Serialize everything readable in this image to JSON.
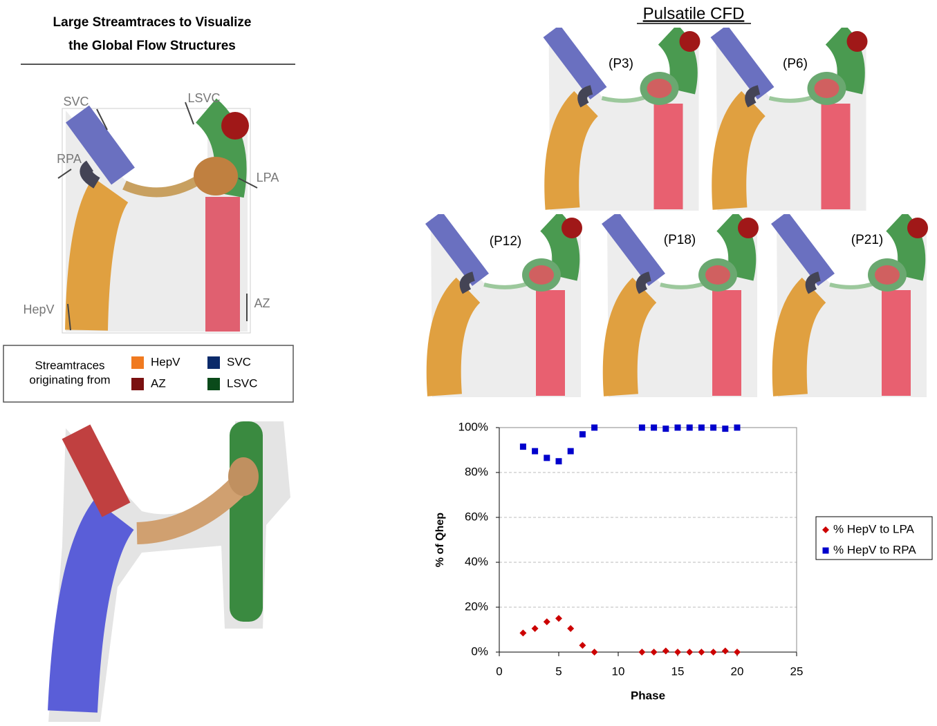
{
  "left_panel": {
    "title_lines": [
      "Large Streamtraces to Visualize",
      "the Global Flow Structures"
    ],
    "vessel_labels": {
      "svc": "SVC",
      "lsvc": "LSVC",
      "rpa": "RPA",
      "lpa": "LPA",
      "hepv": "HepV",
      "az": "AZ"
    },
    "legend": {
      "heading_lines": [
        "Streamtraces",
        "originating from"
      ],
      "items": [
        {
          "label": "HepV",
          "color": "#f07a20"
        },
        {
          "label": "SVC",
          "color": "#0a2a6a"
        },
        {
          "label": "AZ",
          "color": "#7a1010"
        },
        {
          "label": "LSVC",
          "color": "#0a4a1a"
        }
      ]
    }
  },
  "right_panel": {
    "title": "Pulsatile CFD",
    "phase_labels": [
      "(P3)",
      "(P6)",
      "(P12)",
      "(P18)",
      "(P21)"
    ]
  },
  "chart_data": {
    "type": "scatter",
    "x_label": "Phase",
    "y_label": "% of Qhep",
    "x": [
      2,
      3,
      4,
      5,
      6,
      7,
      8,
      12,
      13,
      14,
      15,
      16,
      17,
      18,
      19,
      20
    ],
    "series": [
      {
        "name": "% HepV to LPA",
        "color": "#cc0000",
        "marker": "diamond",
        "values": [
          8.5,
          10.5,
          13.5,
          15,
          10.5,
          3,
          0,
          0,
          0,
          0.5,
          0,
          0,
          0,
          0,
          0.5,
          0
        ]
      },
      {
        "name": "% HepV to RPA",
        "color": "#0000cc",
        "marker": "square",
        "values": [
          91.5,
          89.5,
          86.5,
          85,
          89.5,
          97,
          100,
          100,
          100,
          99.5,
          100,
          100,
          100,
          100,
          99.5,
          100
        ]
      }
    ],
    "xlim": [
      0,
      25
    ],
    "ylim": [
      0,
      100
    ],
    "xticks": [
      0,
      5,
      10,
      15,
      20,
      25
    ],
    "yticks": [
      {
        "value": 0,
        "label": "0%"
      },
      {
        "value": 20,
        "label": "20%"
      },
      {
        "value": 40,
        "label": "40%"
      },
      {
        "value": 60,
        "label": "60%"
      },
      {
        "value": 80,
        "label": "80%"
      },
      {
        "value": 100,
        "label": "100%"
      }
    ],
    "grid": true,
    "legend": "right"
  }
}
